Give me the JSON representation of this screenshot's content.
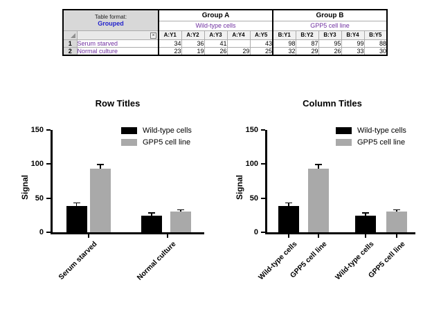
{
  "table": {
    "format_label": "Table format:",
    "format_value": "Grouped",
    "close_glyph": "×",
    "groups": [
      {
        "name": "Group A",
        "subtitle": "Wild-type cells",
        "col_ids": [
          "A:Y1",
          "A:Y2",
          "A:Y3",
          "A:Y4",
          "A:Y5"
        ]
      },
      {
        "name": "Group B",
        "subtitle": "GPP5 cell line",
        "col_ids": [
          "B:Y1",
          "B:Y2",
          "B:Y3",
          "B:Y4",
          "B:Y5"
        ]
      }
    ],
    "rows": [
      {
        "num": "1",
        "title": "Serum starved",
        "values": [
          "34",
          "36",
          "41",
          "",
          "43",
          "98",
          "87",
          "95",
          "99",
          "88"
        ]
      },
      {
        "num": "2",
        "title": "Normal culture",
        "values": [
          "23",
          "19",
          "26",
          "29",
          "25",
          "32",
          "29",
          "26",
          "33",
          "30"
        ]
      }
    ],
    "colors": {
      "format_value_text": "#2222cc",
      "subtitle_text": "#7030a0",
      "row_title_text": "#7030a0"
    }
  },
  "chart_data": [
    {
      "type": "bar",
      "title": "Row Titles",
      "ylabel": "Signal",
      "xlabel": "",
      "ylim": [
        0,
        150
      ],
      "yticks": [
        0,
        50,
        100,
        150
      ],
      "grid": false,
      "legend_position": "top-right",
      "legend": [
        {
          "label": "Wild-type cells",
          "color": "#000000"
        },
        {
          "label": "GPP5 cell line",
          "color": "#a9a9a9"
        }
      ],
      "categories": [
        "Serum starved",
        "Normal culture"
      ],
      "series": [
        {
          "name": "Wild-type cells",
          "color": "#000000",
          "values": [
            38.5,
            24.4
          ],
          "errors": [
            4.2,
            3.7
          ]
        },
        {
          "name": "GPP5 cell line",
          "color": "#a9a9a9",
          "values": [
            93.4,
            30.0
          ],
          "errors": [
            5.6,
            2.7
          ]
        }
      ]
    },
    {
      "type": "bar",
      "title": "Column Titles",
      "ylabel": "Signal",
      "xlabel": "",
      "ylim": [
        0,
        150
      ],
      "yticks": [
        0,
        50,
        100,
        150
      ],
      "grid": false,
      "legend_position": "top-right",
      "legend": [
        {
          "label": "Wild-type cells",
          "color": "#000000"
        },
        {
          "label": "GPP5 cell line",
          "color": "#a9a9a9"
        }
      ],
      "categories": [
        "Wild-type cells",
        "GPP5 cell line",
        "Wild-type cells",
        "GPP5 cell line"
      ],
      "values": [
        38.5,
        93.4,
        24.4,
        30.0
      ],
      "errors": [
        4.2,
        5.6,
        3.7,
        2.7
      ],
      "bar_colors": [
        "#000000",
        "#a9a9a9",
        "#000000",
        "#a9a9a9"
      ]
    }
  ]
}
